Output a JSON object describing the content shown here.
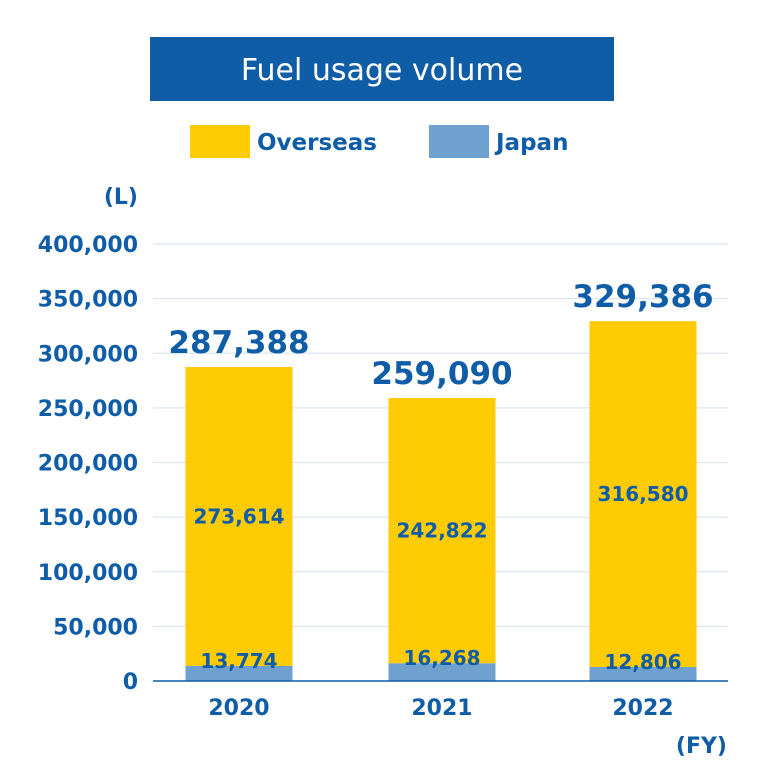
{
  "colors": {
    "title_background": "#0f5ca7",
    "text": "#0f5ca7",
    "overseas": "#ffcb05",
    "japan": "#6ea1cf",
    "gridline": "#dce6f1"
  },
  "chart_data": {
    "type": "bar",
    "stacked": true,
    "title": "Fuel usage volume",
    "y_unit": "(L)",
    "x_unit": "(FY)",
    "categories": [
      "2020",
      "2021",
      "2022"
    ],
    "series": [
      {
        "name": "Japan",
        "color": "#6ea1cf",
        "values": [
          13774,
          16268,
          12806
        ],
        "labels": [
          "13,774",
          "16,268",
          "12,806"
        ]
      },
      {
        "name": "Overseas",
        "color": "#ffcb05",
        "values": [
          273614,
          242822,
          316580
        ],
        "labels": [
          "273,614",
          "242,822",
          "316,580"
        ]
      }
    ],
    "totals": [
      "287,388",
      "259,090",
      "329,386"
    ],
    "legend_order": [
      "Overseas",
      "Japan"
    ],
    "ylim": [
      0,
      400000
    ],
    "yticks": [
      0,
      50000,
      100000,
      150000,
      200000,
      250000,
      300000,
      350000,
      400000
    ],
    "ytick_labels": [
      "0",
      "50,000",
      "100,000",
      "150,000",
      "200,000",
      "250,000",
      "300,000",
      "350,000",
      "400,000"
    ],
    "grid": true,
    "legend_position": "top"
  }
}
